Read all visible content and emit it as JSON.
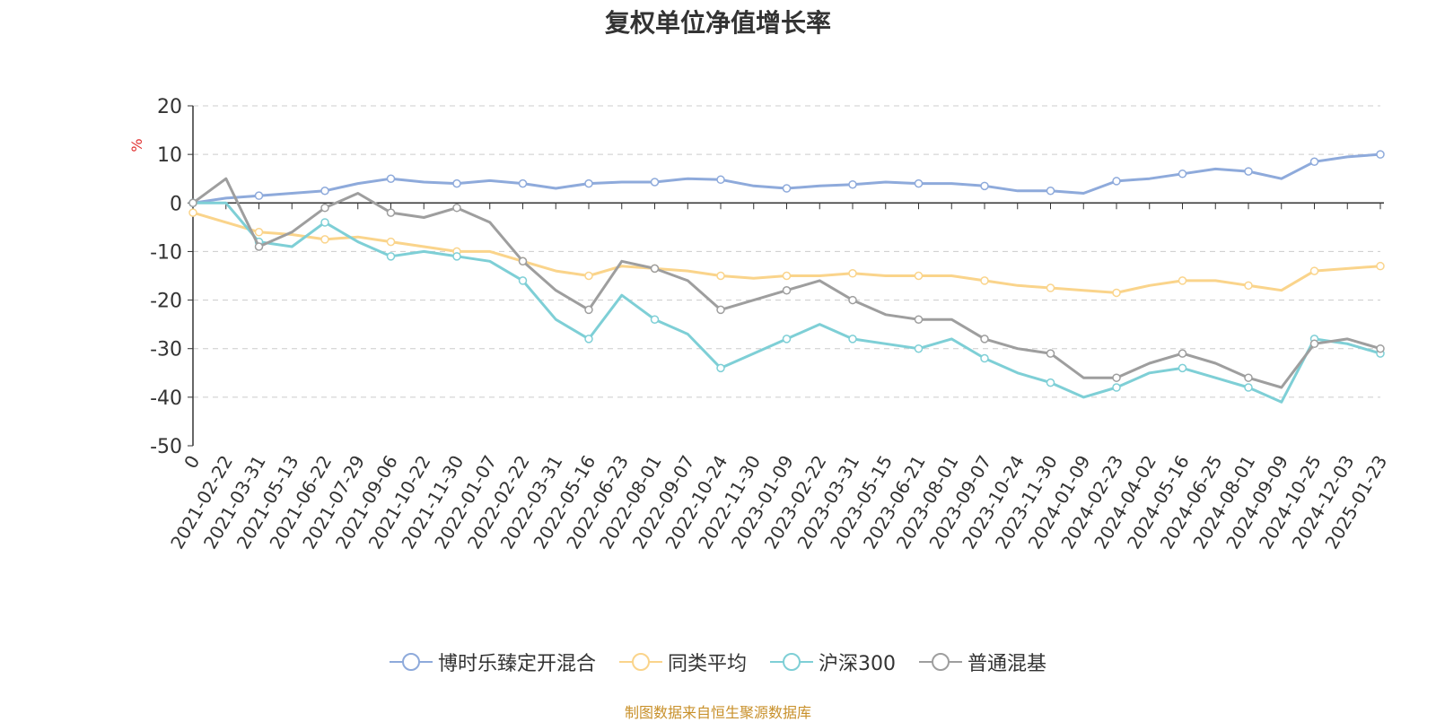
{
  "chart_data": {
    "type": "line",
    "title": "复权单位净值增长率",
    "ylabel": "%",
    "ylim": [
      -50,
      20
    ],
    "yticks": [
      20,
      10,
      0,
      -10,
      -20,
      -30,
      -40,
      -50
    ],
    "grid": true,
    "legend_position": "bottom",
    "categories": [
      "0",
      "2021-02-22",
      "2021-03-31",
      "2021-05-13",
      "2021-06-22",
      "2021-07-29",
      "2021-09-06",
      "2021-10-22",
      "2021-11-30",
      "2022-01-07",
      "2022-02-22",
      "2022-03-31",
      "2022-05-16",
      "2022-06-23",
      "2022-08-01",
      "2022-09-07",
      "2022-10-24",
      "2022-11-30",
      "2023-01-09",
      "2023-02-22",
      "2023-03-31",
      "2023-05-15",
      "2023-06-21",
      "2023-08-01",
      "2023-09-07",
      "2023-10-24",
      "2023-11-30",
      "2024-01-09",
      "2024-02-23",
      "2024-04-02",
      "2024-05-16",
      "2024-06-25",
      "2024-08-01",
      "2024-09-09",
      "2024-10-25",
      "2024-12-03",
      "2025-01-23"
    ],
    "series": [
      {
        "name": "博时乐臻定开混合",
        "color": "#8eaadb",
        "values": [
          0,
          1,
          1.5,
          2,
          2.5,
          4,
          5,
          4.3,
          4,
          4.6,
          4,
          3,
          4,
          4.3,
          4.3,
          5,
          4.8,
          3.5,
          3,
          3.5,
          3.8,
          4.3,
          4,
          4,
          3.5,
          2.5,
          2.5,
          2,
          4.5,
          5,
          6,
          7,
          6.5,
          5,
          8.5,
          9.5,
          10
        ]
      },
      {
        "name": "同类平均",
        "color": "#fad48b",
        "values": [
          -2,
          -4,
          -6,
          -6.5,
          -7.5,
          -7,
          -8,
          -9,
          -10,
          -10,
          -12,
          -14,
          -15,
          -13,
          -13.5,
          -14,
          -15,
          -15.5,
          -15,
          -15,
          -14.5,
          -15,
          -15,
          -15,
          -16,
          -17,
          -17.5,
          -18,
          -18.5,
          -17,
          -16,
          -16,
          -17,
          -18,
          -14,
          -13.5,
          -13
        ]
      },
      {
        "name": "沪深300",
        "color": "#7ecfd6",
        "values": [
          0,
          0,
          -8,
          -9,
          -4,
          -8,
          -11,
          -10,
          -11,
          -12,
          -16,
          -24,
          -28,
          -19,
          -24,
          -27,
          -34,
          -31,
          -28,
          -25,
          -28,
          -29,
          -30,
          -28,
          -32,
          -35,
          -37,
          -40,
          -38,
          -35,
          -34,
          -36,
          -38,
          -41,
          -28,
          -29,
          -31
        ]
      },
      {
        "name": "普通混基",
        "color": "#9e9e9e",
        "values": [
          0,
          5,
          -9,
          -6,
          -1,
          2,
          -2,
          -3,
          -1,
          -4,
          -12,
          -18,
          -22,
          -12,
          -13.5,
          -16,
          -22,
          -20,
          -18,
          -16,
          -20,
          -23,
          -24,
          -24,
          -28,
          -30,
          -31,
          -36,
          -36,
          -33,
          -31,
          -33,
          -36,
          -38,
          -29,
          -28,
          -30
        ]
      }
    ]
  },
  "source_text": "制图数据来自恒生聚源数据库"
}
